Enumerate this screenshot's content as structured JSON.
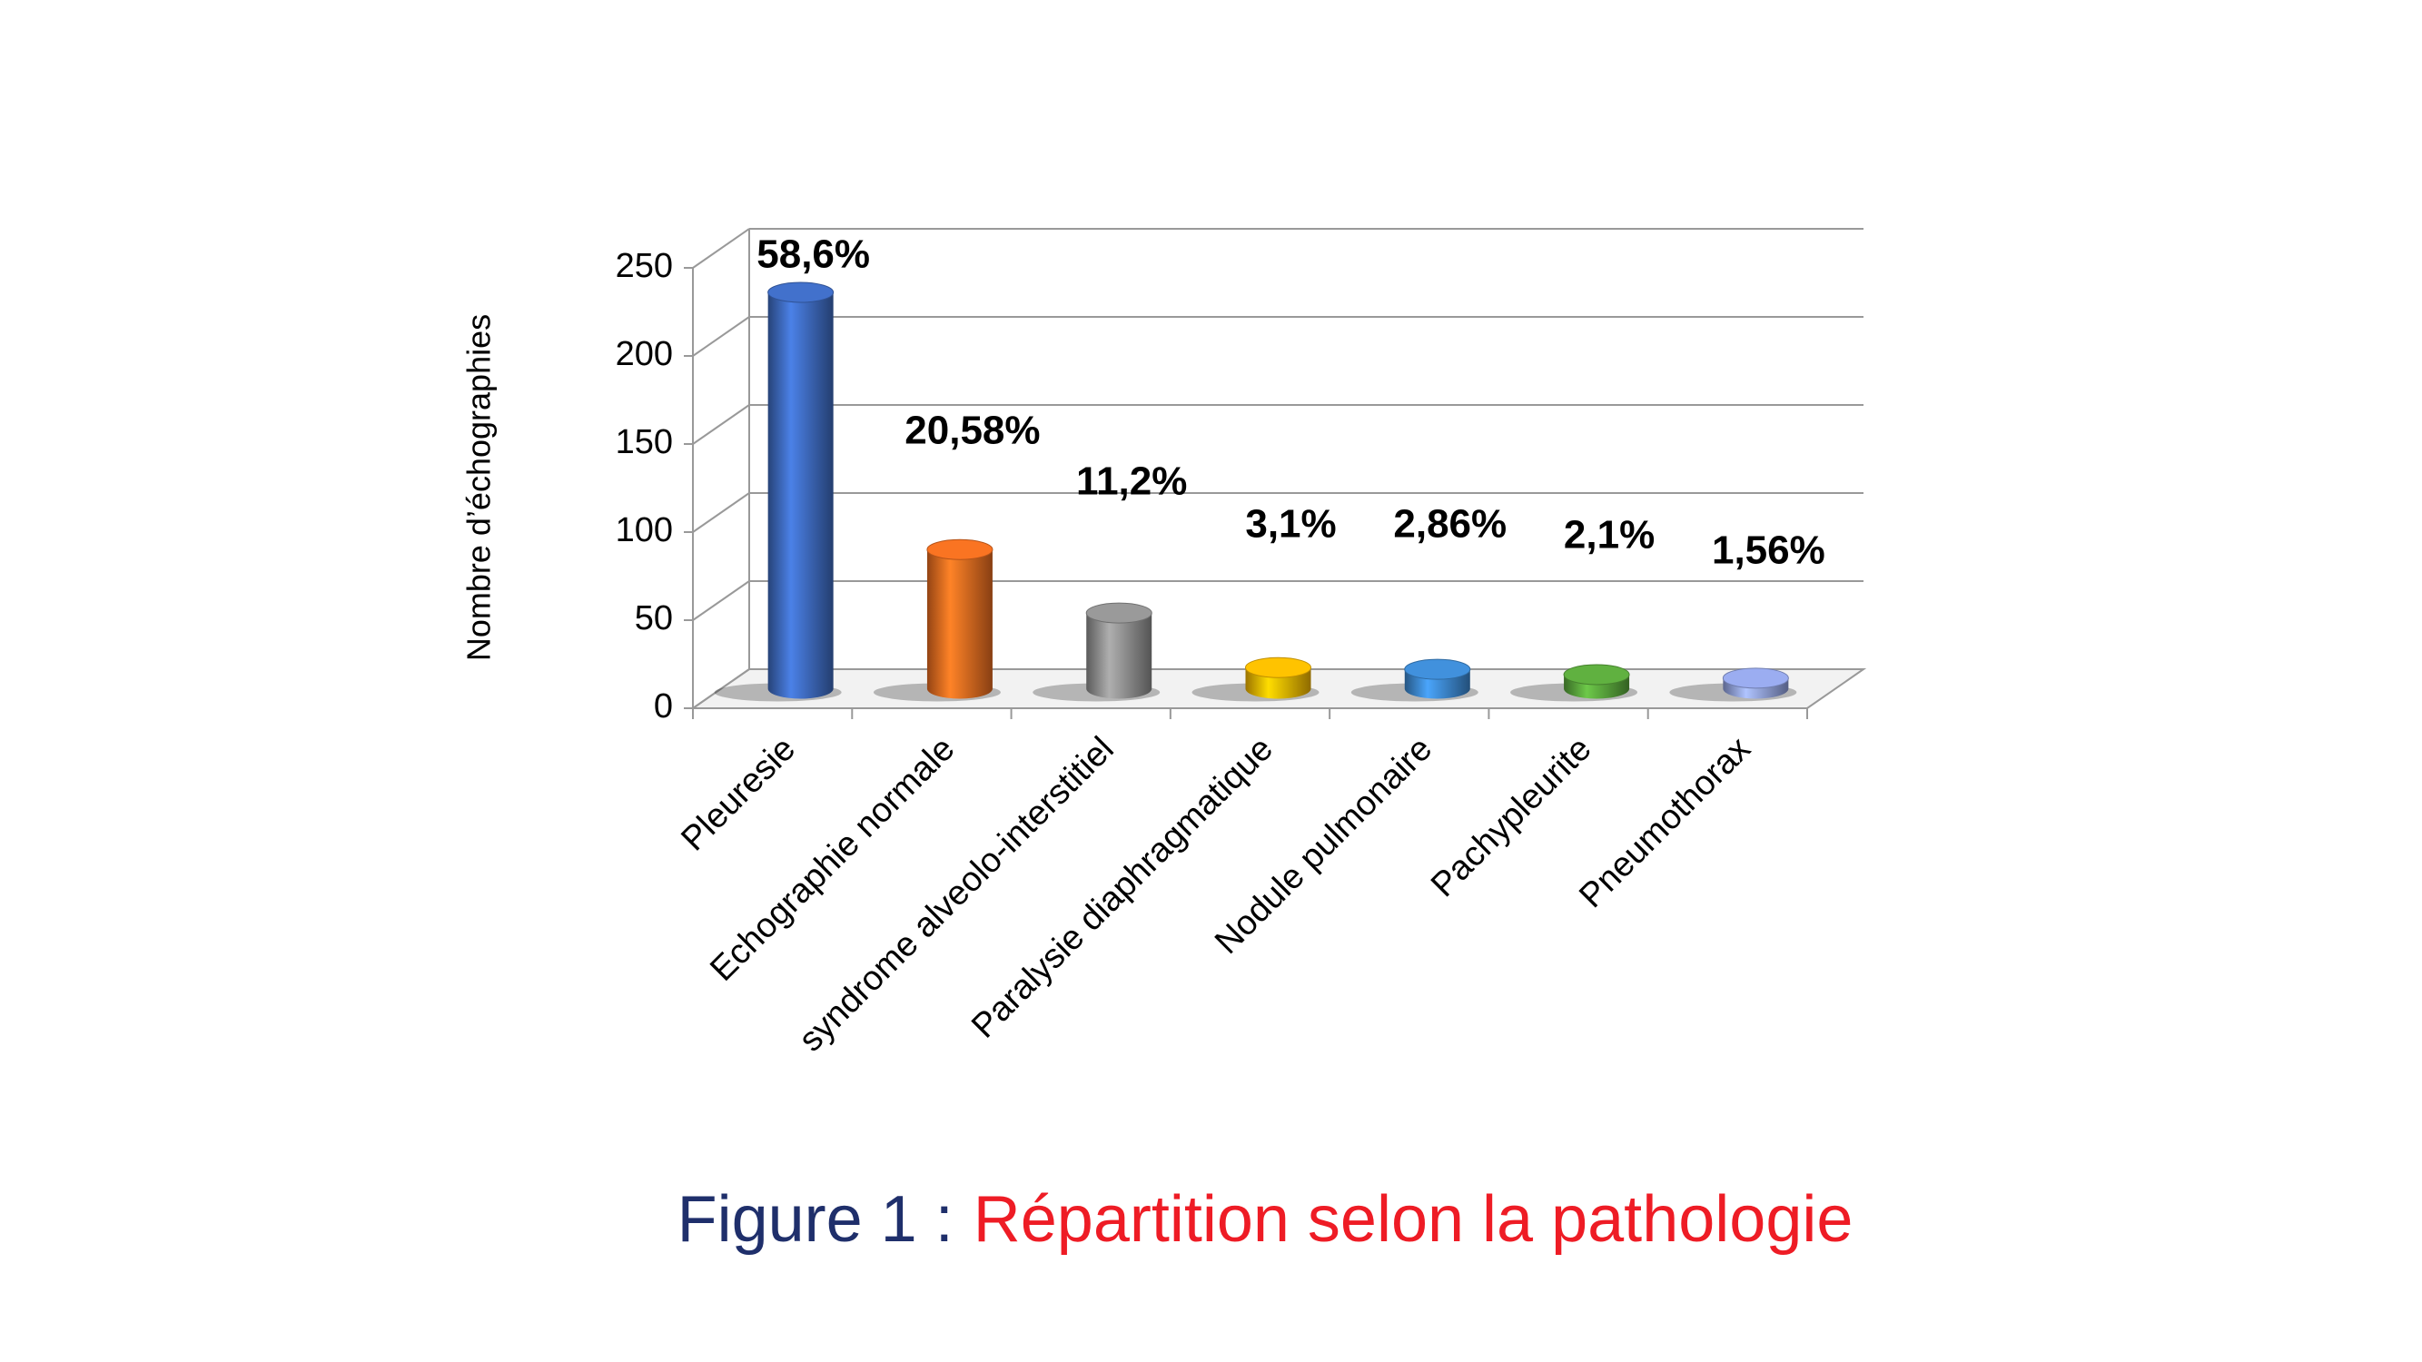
{
  "chart_data": {
    "type": "bar",
    "figure_label": "Figure 1 :",
    "title": "Répartition selon la pathologie",
    "y_label": "Nombre d’échographies",
    "categories": [
      "Pleuresie",
      "Echographie normale",
      "syndrome alveolo-interstitiel",
      "Paralysie diaphragmatique",
      "Nodule pulmonaire",
      "Pachypleurite",
      "Pneumothorax"
    ],
    "values": [
      225,
      79,
      43,
      12,
      11,
      8,
      6
    ],
    "annotations": [
      "58,6%",
      "20,58%",
      "11,2%",
      "3,1%",
      "2,86%",
      "2,1%",
      "1,56%"
    ],
    "colors": [
      "#3c67b9",
      "#e3691f",
      "#8c8c8c",
      "#efb100",
      "#3b84c9",
      "#57a13a",
      "#8d9ddb"
    ],
    "ylim": [
      0,
      250
    ],
    "yticks": [
      0,
      50,
      100,
      150,
      200,
      250
    ],
    "grid": true
  }
}
